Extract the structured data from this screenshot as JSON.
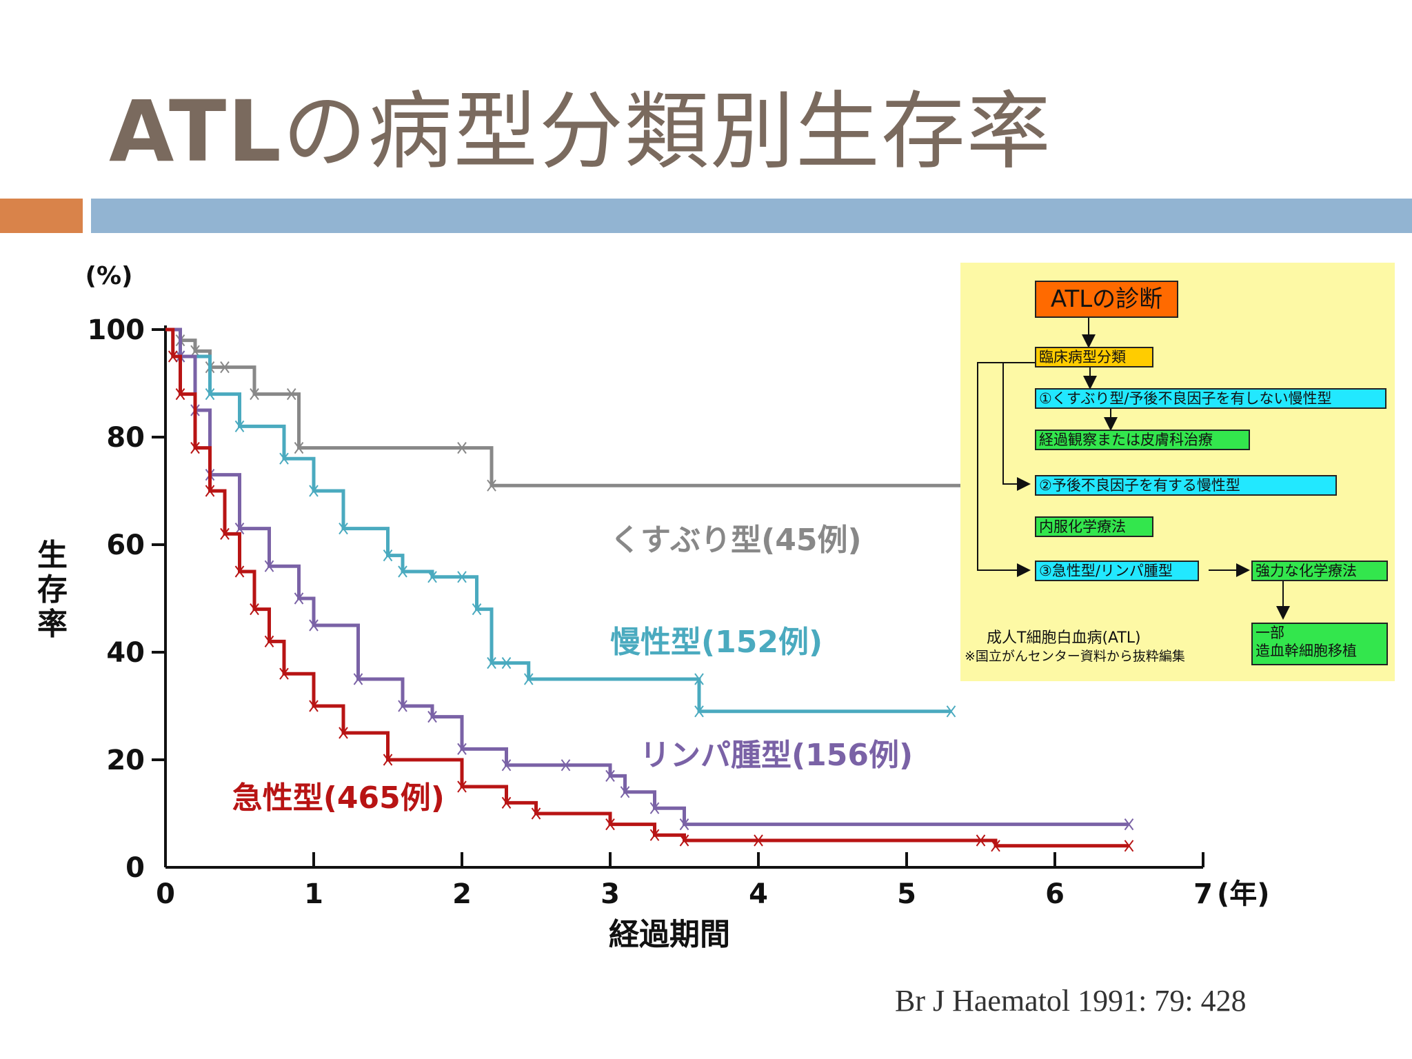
{
  "slide": {
    "title_bold": "ATL",
    "title_rest": "の病型分類別生存率",
    "citation": "Br J Haematol 1991: 79: 428"
  },
  "colors": {
    "accent_orange": "#d9834a",
    "accent_blue": "#92b4d2",
    "smoldering": "#888888",
    "chronic": "#4aaabf",
    "lymphoma": "#7a62a6",
    "acute": "#b81414"
  },
  "chart_data": {
    "type": "line",
    "xlabel": "経過期間",
    "x_unit": "(年)",
    "ylabel": "生存率",
    "y_unit": "(%)",
    "xlim": [
      0,
      7
    ],
    "ylim": [
      0,
      100
    ],
    "x_ticks": [
      0,
      1,
      2,
      3,
      4,
      5,
      6,
      7
    ],
    "y_ticks": [
      0,
      20,
      40,
      60,
      80,
      100
    ],
    "grid": false,
    "series": [
      {
        "name": "くすぶり型(45例)",
        "color": "#888888",
        "x": [
          0,
          0.1,
          0.2,
          0.3,
          0.4,
          0.6,
          0.85,
          0.9,
          2.0,
          2.2,
          6.5
        ],
        "y": [
          100,
          98,
          96,
          93,
          93,
          88,
          88,
          78,
          78,
          71,
          64
        ],
        "label_at": [
          3.0,
          59
        ]
      },
      {
        "name": "慢性型(152例)",
        "color": "#4aaabf",
        "x": [
          0,
          0.1,
          0.3,
          0.5,
          0.8,
          1.0,
          1.2,
          1.5,
          1.6,
          1.8,
          2.0,
          2.1,
          2.2,
          2.3,
          2.45,
          3.6,
          3.6,
          5.3
        ],
        "y": [
          100,
          95,
          88,
          82,
          76,
          70,
          63,
          58,
          55,
          54,
          54,
          48,
          38,
          38,
          35,
          35,
          29,
          29
        ],
        "label_at": [
          3.0,
          40
        ]
      },
      {
        "name": "リンパ腫型(156例)",
        "color": "#7a62a6",
        "x": [
          0,
          0.1,
          0.2,
          0.3,
          0.5,
          0.7,
          0.9,
          1.0,
          1.3,
          1.6,
          1.8,
          2.0,
          2.3,
          2.7,
          3.0,
          3.1,
          3.3,
          3.5,
          6.5
        ],
        "y": [
          100,
          95,
          85,
          73,
          63,
          56,
          50,
          45,
          35,
          30,
          28,
          22,
          19,
          19,
          17,
          14,
          11,
          8,
          8
        ],
        "label_at": [
          3.2,
          19
        ]
      },
      {
        "name": "急性型(465例)",
        "color": "#b81414",
        "x": [
          0,
          0.05,
          0.1,
          0.2,
          0.3,
          0.4,
          0.5,
          0.6,
          0.7,
          0.8,
          1.0,
          1.2,
          1.5,
          2.0,
          2.3,
          2.5,
          3.0,
          3.3,
          3.5,
          4.0,
          5.5,
          5.6,
          6.5
        ],
        "y": [
          100,
          95,
          88,
          78,
          70,
          62,
          55,
          48,
          42,
          36,
          30,
          25,
          20,
          15,
          12,
          10,
          8,
          6,
          5,
          5,
          5,
          4,
          4
        ],
        "label_at": [
          0.45,
          11
        ]
      }
    ]
  },
  "flowchart": {
    "title": "ATLの診断",
    "classification": "臨床病型分類",
    "item1": "①くすぶり型/予後不良因子を有しない慢性型",
    "action1": "経過観察または皮膚科治療",
    "item2": "②予後不良因子を有する慢性型",
    "action2": "内服化学療法",
    "item3": "③急性型/リンパ腫型",
    "action3": "強力な化学療法",
    "action4_line1": "一部",
    "action4_line2": "造血幹細胞移植",
    "note1": "成人T細胞白血病(ATL)",
    "note2": "※国立がんセンター資料から抜粋編集"
  }
}
